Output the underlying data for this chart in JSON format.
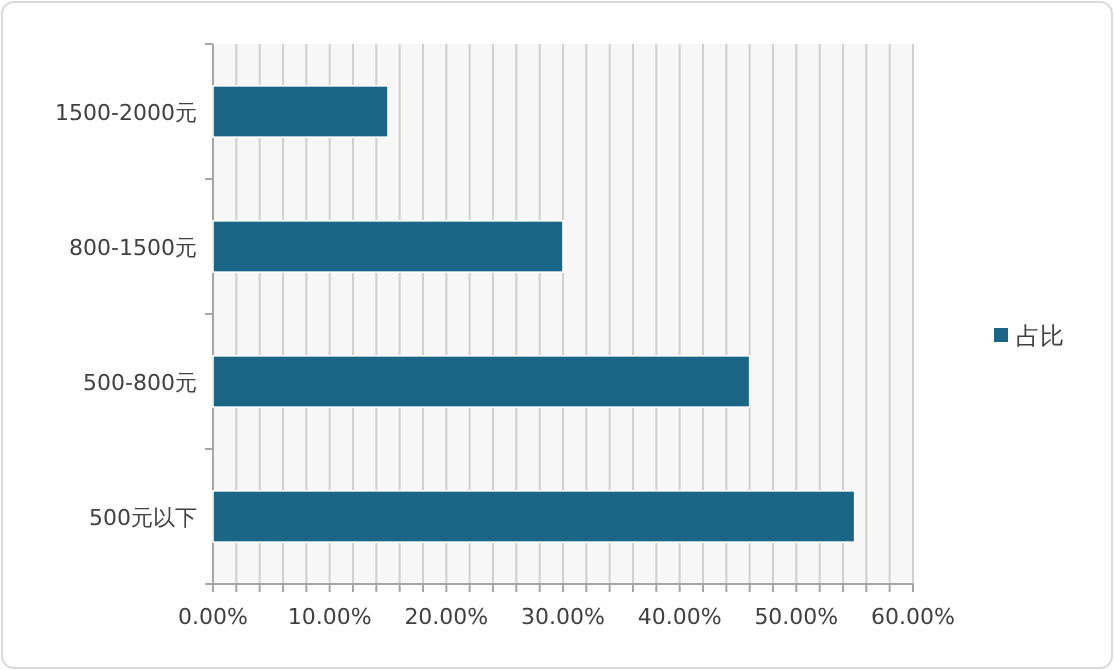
{
  "chart_data": {
    "type": "bar",
    "orientation": "horizontal",
    "categories": [
      "1500-2000元",
      "800-1500元",
      "500-800元",
      "500元以下"
    ],
    "series": [
      {
        "name": "占比",
        "color": "#1b6587",
        "values": [
          15,
          30,
          46,
          55
        ]
      }
    ],
    "xlim": [
      0,
      60
    ],
    "xticks": [
      {
        "value": 0,
        "label": "0.00%"
      },
      {
        "value": 2,
        "label": null
      },
      {
        "value": 4,
        "label": null
      },
      {
        "value": 6,
        "label": null
      },
      {
        "value": 8,
        "label": null
      },
      {
        "value": 10,
        "label": "10.00%"
      },
      {
        "value": 12,
        "label": null
      },
      {
        "value": 14,
        "label": null
      },
      {
        "value": 16,
        "label": null
      },
      {
        "value": 18,
        "label": null
      },
      {
        "value": 20,
        "label": "20.00%"
      },
      {
        "value": 22,
        "label": null
      },
      {
        "value": 24,
        "label": null
      },
      {
        "value": 26,
        "label": null
      },
      {
        "value": 28,
        "label": null
      },
      {
        "value": 30,
        "label": "30.00%"
      },
      {
        "value": 32,
        "label": null
      },
      {
        "value": 34,
        "label": null
      },
      {
        "value": 36,
        "label": null
      },
      {
        "value": 38,
        "label": null
      },
      {
        "value": 40,
        "label": "40.00%"
      },
      {
        "value": 42,
        "label": null
      },
      {
        "value": 44,
        "label": null
      },
      {
        "value": 46,
        "label": null
      },
      {
        "value": 48,
        "label": null
      },
      {
        "value": 50,
        "label": "50.00%"
      },
      {
        "value": 52,
        "label": null
      },
      {
        "value": 54,
        "label": null
      },
      {
        "value": 56,
        "label": null
      },
      {
        "value": 58,
        "label": null
      },
      {
        "value": 60,
        "label": "60.00%"
      }
    ],
    "grid": "x",
    "legend": "right"
  }
}
